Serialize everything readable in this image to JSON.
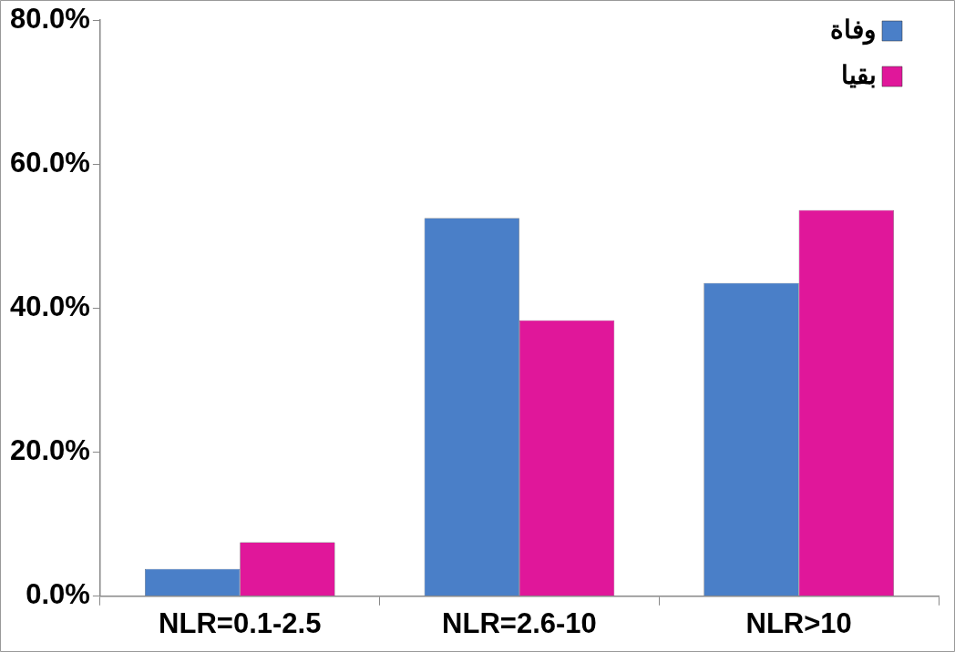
{
  "chart_data": {
    "type": "bar",
    "categories": [
      "NLR=0.1-2.5",
      "NLR=2.6-10",
      "NLR>10"
    ],
    "series": [
      {
        "name": "وفاة",
        "color": "#4a7fc8",
        "values": [
          3.8,
          52.5,
          43.5
        ]
      },
      {
        "name": "بقيا",
        "color": "#e0179a",
        "values": [
          7.5,
          38.3,
          53.6
        ]
      }
    ],
    "ylim": [
      0,
      80
    ],
    "yticks": [
      {
        "value": 0,
        "label": "0.0%"
      },
      {
        "value": 20,
        "label": "20.0%"
      },
      {
        "value": 40,
        "label": "40.0%"
      },
      {
        "value": 60,
        "label": "60.0%"
      },
      {
        "value": 80,
        "label": "80.0%"
      }
    ],
    "grid": false,
    "legend": "top right"
  }
}
